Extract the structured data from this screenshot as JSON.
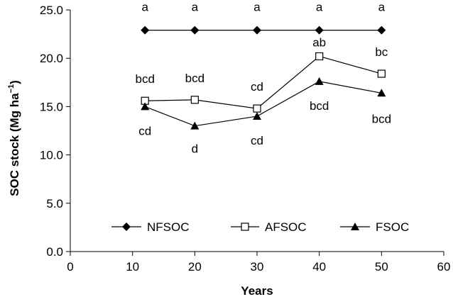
{
  "chart_data": {
    "type": "line",
    "title": "",
    "xlabel": "Years",
    "ylabel": {
      "main": "SOC stock (Mg ha",
      "sup": "−1",
      "close": ")"
    },
    "xlim": [
      0,
      60
    ],
    "ylim": [
      0,
      25
    ],
    "xticks": [
      "0",
      "10",
      "20",
      "30",
      "40",
      "50",
      "60"
    ],
    "yticks": [
      "0.0",
      "5.0",
      "10.0",
      "15.0",
      "20.0",
      "25.0"
    ],
    "grid": false,
    "legend_position": "bottom-center",
    "x": [
      12,
      20,
      30,
      40,
      50
    ],
    "series": [
      {
        "name": "NFSOC",
        "marker": "diamond-filled",
        "values": [
          22.9,
          22.9,
          22.9,
          22.9,
          22.9
        ],
        "labels": [
          "a",
          "a",
          "a",
          "a",
          "a"
        ]
      },
      {
        "name": "AFSOC",
        "marker": "square-open",
        "values": [
          15.6,
          15.7,
          14.8,
          20.2,
          18.4
        ],
        "labels": [
          "bcd",
          "bcd",
          "cd",
          "ab",
          "bc"
        ]
      },
      {
        "name": "FSOC",
        "marker": "triangle-filled",
        "values": [
          15.0,
          13.0,
          14.0,
          17.6,
          16.4
        ],
        "labels": [
          "cd",
          "d",
          "cd",
          "bcd",
          "bcd"
        ]
      }
    ],
    "colors": {
      "line": "#000000",
      "background": "#ffffff"
    }
  }
}
